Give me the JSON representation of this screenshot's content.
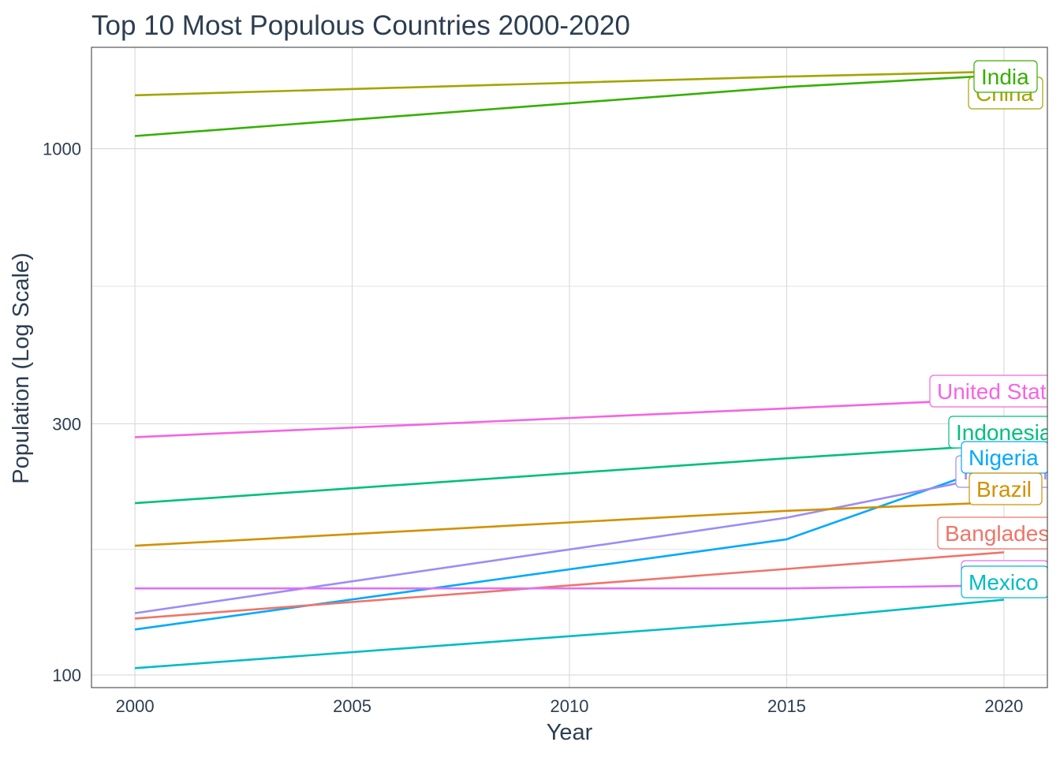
{
  "chart_data": {
    "type": "line",
    "title": "Top 10 Most Populous Countries 2000-2020",
    "xlabel": "Year",
    "ylabel": "Population (Log Scale)",
    "x": [
      2000,
      2015,
      2020
    ],
    "x_ticks": [
      "2000",
      "2005",
      "2010",
      "2015",
      "2020"
    ],
    "y_ticks": [
      "100",
      "300",
      "1000"
    ],
    "y_scale": "log10",
    "xlim": [
      1999,
      2021
    ],
    "ylim": [
      94.6,
      1558
    ],
    "grid": true,
    "legend": "direct labels at line ends",
    "series": [
      {
        "name": "India",
        "color": "#35b000",
        "values": [
          1057,
          1310,
          1380
        ]
      },
      {
        "name": "China",
        "color": "#a3a500",
        "values": [
          1263,
          1371,
          1402
        ]
      },
      {
        "name": "United States",
        "color": "#f564e3",
        "values": [
          283,
          321,
          335
        ]
      },
      {
        "name": "Indonesia",
        "color": "#00bf7d",
        "values": [
          212,
          258,
          274
        ]
      },
      {
        "name": "Nigeria",
        "color": "#00a9ff",
        "values": [
          122,
          181,
          253
        ]
      },
      {
        "name": "Pakistan",
        "color": "#9c8cf6",
        "values": [
          131,
          199,
          241
        ]
      },
      {
        "name": "Brazil",
        "color": "#d29100",
        "values": [
          176,
          205,
          213
        ]
      },
      {
        "name": "Bangladesh",
        "color": "#f07469",
        "values": [
          128,
          159,
          171
        ]
      },
      {
        "name": "Russia",
        "color": "#df70f8",
        "values": [
          146,
          146,
          148
        ]
      },
      {
        "name": "Mexico",
        "color": "#00bcc4",
        "values": [
          103,
          127,
          139
        ]
      }
    ]
  }
}
